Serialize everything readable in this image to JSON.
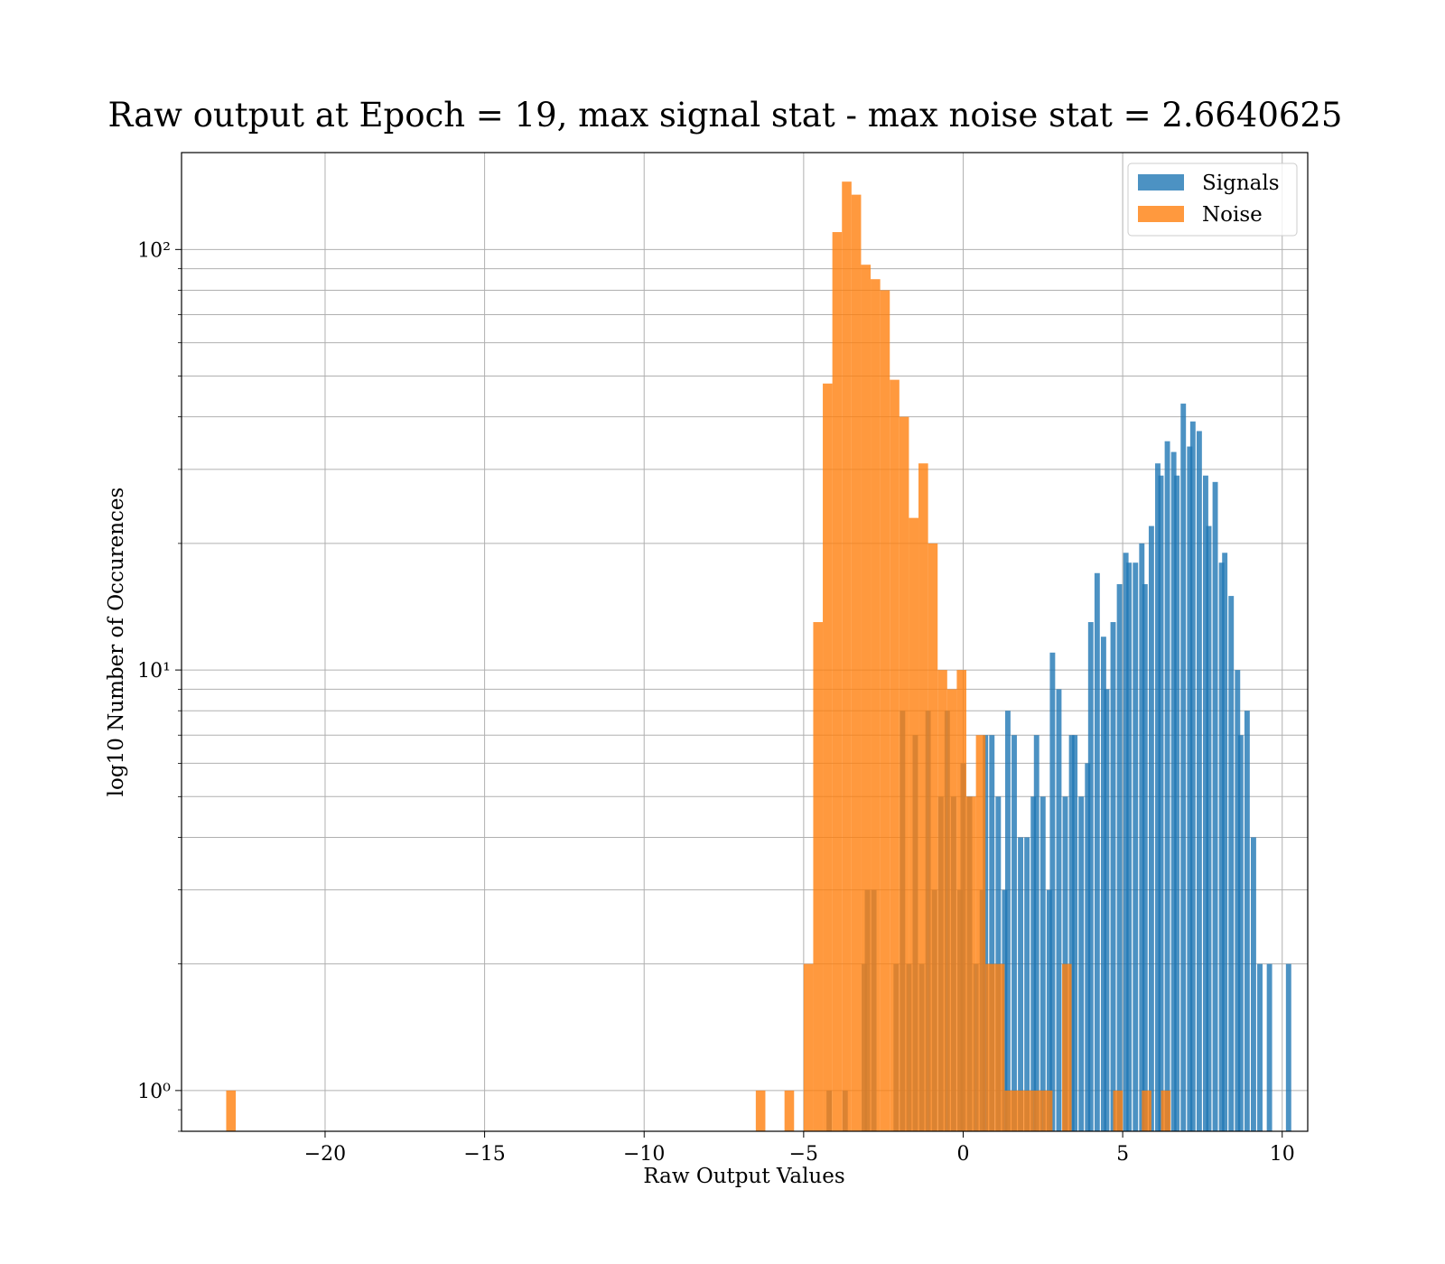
{
  "chart_data": {
    "type": "bar",
    "title": "Raw output at Epoch = 19, max signal stat - max noise stat = 2.6640625",
    "xlabel": "Raw Output Values",
    "ylabel": "log10 Number of Occurences",
    "xlim": [
      -24.5,
      10.8
    ],
    "ylim": [
      0.8,
      170
    ],
    "yscale": "log",
    "grid": true,
    "legend_position": "top-right",
    "xticks": [
      -20,
      -15,
      -10,
      -5,
      0,
      5,
      10
    ],
    "xtick_labels": [
      "−20",
      "−15",
      "−10",
      "−5",
      "0",
      "5",
      "10"
    ],
    "yticks": [
      1,
      10,
      100
    ],
    "ytick_labels": [
      "10⁰",
      "10¹",
      "10²"
    ],
    "series": [
      {
        "name": "Signals",
        "color": "#1f77b4",
        "alpha": 0.8,
        "bin_width": 0.167,
        "bins": [
          [
            -4.2,
            1
          ],
          [
            -3.7,
            1
          ],
          [
            -3.1,
            2
          ],
          [
            -3.0,
            3
          ],
          [
            -2.8,
            3
          ],
          [
            -2.1,
            2
          ],
          [
            -1.9,
            8
          ],
          [
            -1.7,
            2
          ],
          [
            -1.5,
            7
          ],
          [
            -1.3,
            2
          ],
          [
            -1.1,
            8
          ],
          [
            -0.9,
            3
          ],
          [
            -0.7,
            5
          ],
          [
            -0.5,
            8
          ],
          [
            -0.3,
            5
          ],
          [
            -0.1,
            3
          ],
          [
            0.0,
            6
          ],
          [
            0.2,
            5
          ],
          [
            0.4,
            2
          ],
          [
            0.6,
            3
          ],
          [
            0.7,
            7
          ],
          [
            0.9,
            7
          ],
          [
            1.1,
            5
          ],
          [
            1.3,
            3
          ],
          [
            1.4,
            8
          ],
          [
            1.6,
            7
          ],
          [
            1.8,
            4
          ],
          [
            2.0,
            4
          ],
          [
            2.2,
            5
          ],
          [
            2.3,
            7
          ],
          [
            2.5,
            5
          ],
          [
            2.7,
            3
          ],
          [
            2.8,
            11
          ],
          [
            3.0,
            9
          ],
          [
            3.2,
            5
          ],
          [
            3.4,
            7
          ],
          [
            3.5,
            7
          ],
          [
            3.7,
            5
          ],
          [
            3.9,
            6
          ],
          [
            4.0,
            13
          ],
          [
            4.2,
            17
          ],
          [
            4.4,
            12
          ],
          [
            4.5,
            9
          ],
          [
            4.7,
            13
          ],
          [
            4.9,
            16
          ],
          [
            5.1,
            19
          ],
          [
            5.2,
            18
          ],
          [
            5.4,
            18
          ],
          [
            5.6,
            20
          ],
          [
            5.7,
            16
          ],
          [
            5.9,
            22
          ],
          [
            6.1,
            31
          ],
          [
            6.2,
            29
          ],
          [
            6.4,
            35
          ],
          [
            6.6,
            33
          ],
          [
            6.7,
            29
          ],
          [
            6.9,
            43
          ],
          [
            7.1,
            34
          ],
          [
            7.2,
            39
          ],
          [
            7.4,
            37
          ],
          [
            7.6,
            29
          ],
          [
            7.7,
            22
          ],
          [
            7.9,
            28
          ],
          [
            8.1,
            18
          ],
          [
            8.2,
            19
          ],
          [
            8.4,
            15
          ],
          [
            8.6,
            10
          ],
          [
            8.7,
            7
          ],
          [
            8.9,
            8
          ],
          [
            9.1,
            4
          ],
          [
            9.3,
            2
          ],
          [
            9.6,
            2
          ],
          [
            10.2,
            2
          ]
        ]
      },
      {
        "name": "Noise",
        "color": "#ff7f0e",
        "alpha": 0.8,
        "bin_width": 0.3,
        "bins": [
          [
            -22.95,
            1
          ],
          [
            -6.35,
            1
          ],
          [
            -5.45,
            1
          ],
          [
            -4.85,
            2
          ],
          [
            -4.55,
            13
          ],
          [
            -4.25,
            48
          ],
          [
            -3.95,
            110
          ],
          [
            -3.65,
            145
          ],
          [
            -3.35,
            135
          ],
          [
            -3.05,
            92
          ],
          [
            -2.75,
            85
          ],
          [
            -2.45,
            80
          ],
          [
            -2.15,
            49
          ],
          [
            -1.85,
            40
          ],
          [
            -1.55,
            23
          ],
          [
            -1.25,
            31
          ],
          [
            -0.95,
            20
          ],
          [
            -0.65,
            10
          ],
          [
            -0.35,
            9
          ],
          [
            -0.05,
            10
          ],
          [
            0.25,
            5
          ],
          [
            0.55,
            7
          ],
          [
            0.85,
            2
          ],
          [
            1.15,
            2
          ],
          [
            1.45,
            1
          ],
          [
            1.75,
            1
          ],
          [
            2.05,
            1
          ],
          [
            2.35,
            1
          ],
          [
            2.65,
            1
          ],
          [
            3.25,
            2
          ],
          [
            4.85,
            1
          ],
          [
            5.75,
            1
          ],
          [
            6.35,
            1
          ]
        ]
      }
    ]
  }
}
